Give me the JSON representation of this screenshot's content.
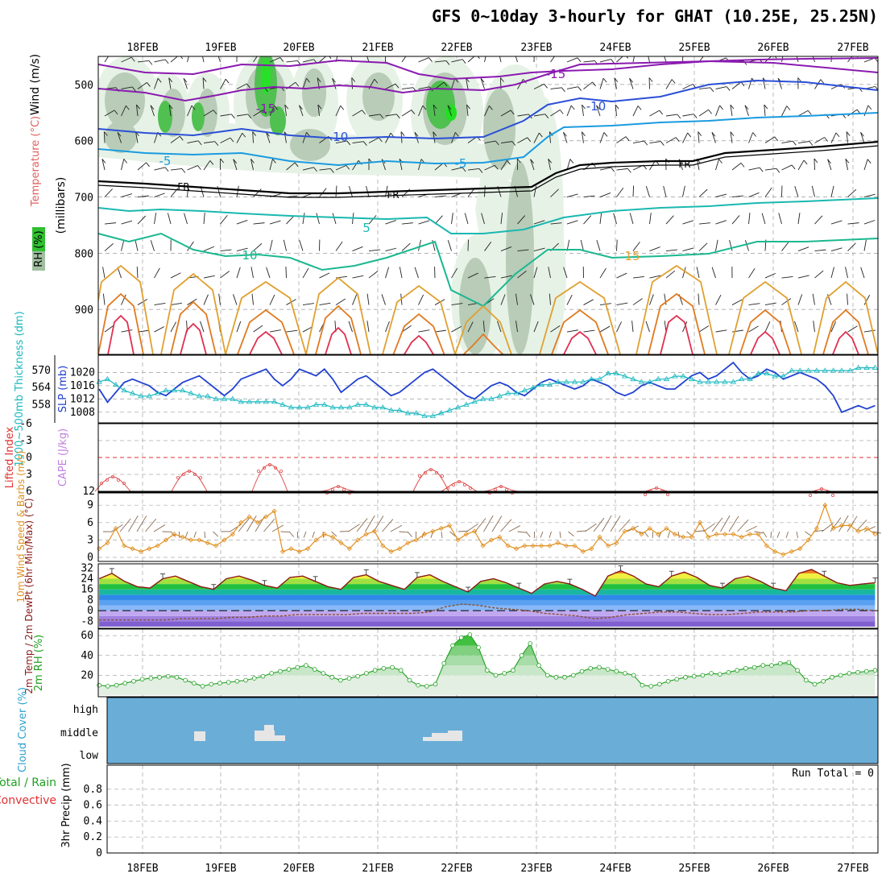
{
  "title": "GFS 0~10day 3-hourly for GHAT (10.25E, 25.25N)",
  "dates": [
    "18FEB",
    "19FEB",
    "20FEB",
    "21FEB",
    "22FEB",
    "23FEB",
    "24FEB",
    "25FEB",
    "26FEB",
    "27FEB"
  ],
  "chart_data": [
    {
      "type": "heatmap",
      "panel": "cross-section",
      "ylabel_parts": [
        {
          "text": "Wind (m/s)",
          "color": "#000000"
        },
        {
          "text": "Temperature (°C)",
          "color": "#e06060"
        },
        {
          "text": "(millibars)",
          "color": "#000000"
        },
        {
          "text": "RH (%)",
          "color": "#000000"
        }
      ],
      "y_ticks": [
        500,
        600,
        700,
        800,
        900
      ],
      "ylim": [
        980,
        450
      ],
      "contour_labels": [
        "-15",
        "-15",
        "-10",
        "-10",
        "-5",
        "-5",
        "FR",
        "FR",
        "FR",
        "5",
        "10",
        "15"
      ],
      "contour_colors": {
        "-15": "#8a1ab0",
        "-10": "#2b4fd6",
        "-5": "#1a9be0",
        "FR": "#000000",
        "5": "#1ab8b0",
        "10": "#1ab890",
        "15": "#e0a030",
        "20": "#e07a20",
        "25": "#e03050"
      }
    },
    {
      "type": "line",
      "panel": "thickness-slp",
      "ylabel_left": "1000~500mb Thickness (dm)",
      "ylabel_right": "SLP (mb)",
      "thickness_ticks": [
        558,
        564,
        570
      ],
      "slp_ticks": [
        1008,
        1012,
        1016,
        1020
      ],
      "series": [
        {
          "name": "SLP",
          "color": "#2040d0",
          "values": [
            1015,
            1011,
            1014,
            1017,
            1018,
            1017,
            1016,
            1014,
            1013,
            1015,
            1017,
            1018,
            1019,
            1017,
            1015,
            1013,
            1015,
            1018,
            1019,
            1020,
            1021,
            1018,
            1016,
            1018,
            1021,
            1020,
            1019,
            1021,
            1018,
            1014,
            1016,
            1018,
            1019,
            1017,
            1015,
            1013,
            1014,
            1016,
            1018,
            1020,
            1021,
            1019,
            1017,
            1015,
            1013,
            1012,
            1014,
            1016,
            1017,
            1016,
            1014,
            1013,
            1015,
            1017,
            1018,
            1017,
            1016,
            1015,
            1016,
            1018,
            1017,
            1016,
            1014,
            1013,
            1014,
            1016,
            1017,
            1016,
            1015,
            1015,
            1017,
            1019,
            1020,
            1018,
            1019,
            1021,
            1023,
            1020,
            1018,
            1019,
            1021,
            1020,
            1018,
            1019,
            1020,
            1019,
            1018,
            1016,
            1013,
            1008,
            1009,
            1010,
            1009,
            1010
          ]
        },
        {
          "name": "1000~500mb Thickness",
          "color": "#1ab8c0",
          "values": [
            566,
            567,
            565,
            563,
            562,
            561,
            561,
            562,
            563,
            563,
            563,
            562,
            561,
            561,
            560,
            560,
            560,
            559,
            559,
            559,
            559,
            559,
            558,
            557,
            557,
            557,
            558,
            558,
            557,
            557,
            557,
            558,
            558,
            557,
            557,
            556,
            556,
            555,
            555,
            554,
            554,
            555,
            556,
            557,
            558,
            559,
            560,
            560,
            561,
            562,
            562,
            563,
            564,
            565,
            565,
            566,
            566,
            566,
            566,
            567,
            567,
            569,
            569,
            568,
            567,
            566,
            566,
            567,
            567,
            568,
            568,
            567,
            566,
            566,
            566,
            566,
            566,
            567,
            567,
            569,
            569,
            568,
            568,
            570,
            570,
            570,
            570,
            570,
            570,
            570,
            570,
            571,
            571,
            571
          ]
        }
      ]
    },
    {
      "type": "line",
      "panel": "lifted-index-cape",
      "ylabel_left": "Lifted Index",
      "ylabel_right": "CAPE (J/kg)",
      "y_ticks": [
        -6,
        -3,
        0,
        3,
        6
      ],
      "y_extra_tick": 12
    },
    {
      "type": "line",
      "panel": "10m-wind",
      "ylabel": "10m Wind Speed & Barbs (m/s)",
      "y_ticks": [
        0,
        3,
        6,
        9
      ],
      "ylim": [
        0,
        10
      ],
      "series": [
        {
          "name": "Speed",
          "color": "#e09020",
          "values": [
            1.5,
            2.5,
            5,
            2,
            1.5,
            1,
            1.5,
            2,
            3,
            4,
            3.5,
            3,
            3,
            2.5,
            2,
            3,
            4,
            6,
            7,
            6,
            7,
            8,
            1,
            1.5,
            1,
            1.5,
            3,
            4,
            3.5,
            2.5,
            1.5,
            3,
            4,
            4.5,
            2,
            1,
            1.5,
            2.5,
            3,
            4,
            4.5,
            5,
            5.5,
            3,
            4,
            4.5,
            2,
            3,
            3.5,
            2,
            1.5,
            2,
            2,
            2,
            2,
            2.5,
            2,
            2,
            1,
            1.5,
            3.5,
            2,
            2.5,
            4.5,
            5,
            4,
            5,
            4,
            5,
            4,
            3.5,
            3.5,
            6,
            3.5,
            4,
            4,
            4,
            3.5,
            4,
            4,
            2,
            1,
            0.5,
            1,
            1.5,
            3,
            5,
            9,
            5,
            5.5,
            5.5,
            4.5,
            5,
            4
          ]
        }
      ]
    },
    {
      "type": "area",
      "panel": "2m-temp",
      "ylabel": "2m Temp / 2m DewPt (6hr Min/Max) (°C)",
      "y_ticks": [
        -8,
        0,
        8,
        16,
        24,
        32
      ],
      "ylim": [
        -12,
        34
      ],
      "series": [
        {
          "name": "2m Temp",
          "values": [
            24,
            28,
            22,
            18,
            17,
            24,
            26,
            22,
            18,
            16,
            24,
            26,
            23,
            19,
            17,
            25,
            26,
            22,
            18,
            16,
            25,
            27,
            22,
            19,
            16,
            25,
            27,
            22,
            18,
            14,
            22,
            24,
            21,
            17,
            13,
            20,
            22,
            20,
            16,
            11,
            26,
            30,
            26,
            20,
            18,
            26,
            29,
            25,
            19,
            17,
            24,
            26,
            22,
            17,
            15,
            28,
            31,
            26,
            21,
            19,
            20,
            21
          ]
        },
        {
          "name": "2m DewPt",
          "values": [
            -7,
            -7,
            -7,
            -7,
            -7,
            -6,
            -6,
            -6,
            -5,
            -5,
            -4,
            -4,
            -3,
            -3,
            -3,
            -3,
            -2,
            -2,
            -2,
            -2,
            -1,
            3,
            5,
            4,
            2,
            1,
            0,
            -2,
            -3,
            -4,
            -6,
            -5,
            -3,
            -2,
            -1,
            -1,
            -2,
            -3,
            -3,
            -2,
            -1,
            -1,
            -1,
            0,
            0,
            1,
            1,
            0
          ]
        }
      ]
    },
    {
      "type": "area",
      "panel": "2m-rh",
      "ylabel": "2m RH (%)",
      "y_ticks": [
        20,
        40,
        60
      ],
      "ylim": [
        0,
        65
      ],
      "series": [
        {
          "name": "2m RH",
          "color": "#20a020",
          "values": [
            10,
            9,
            10,
            12,
            14,
            16,
            17,
            18,
            19,
            18,
            15,
            12,
            9,
            11,
            12,
            13,
            14,
            15,
            17,
            19,
            22,
            24,
            26,
            28,
            30,
            26,
            22,
            18,
            15,
            17,
            19,
            22,
            25,
            27,
            28,
            25,
            15,
            10,
            9,
            11,
            32,
            50,
            58,
            61,
            48,
            25,
            20,
            22,
            25,
            40,
            52,
            30,
            20,
            18,
            18,
            20,
            24,
            27,
            28,
            26,
            24,
            22,
            20,
            10,
            9,
            11,
            14,
            16,
            18,
            19,
            20,
            22,
            21,
            23,
            25,
            27,
            28,
            30,
            30,
            32,
            33,
            25,
            15,
            11,
            14,
            18,
            20,
            22,
            23,
            24,
            25
          ]
        }
      ]
    },
    {
      "type": "heatmap",
      "panel": "cloud-cover",
      "ylabel": "Cloud Cover (%)",
      "levels": [
        "high",
        "middle",
        "low"
      ]
    },
    {
      "type": "bar",
      "panel": "precip",
      "ylabel_left": "Total / Rain",
      "ylabel_left2": "Convective",
      "ylabel": "3hr Precip (mm)",
      "y_ticks": [
        0,
        0.2,
        0.4,
        0.6,
        0.8
      ],
      "ylim": [
        0,
        1
      ],
      "annotation": "Run Total = 0",
      "values": []
    }
  ]
}
